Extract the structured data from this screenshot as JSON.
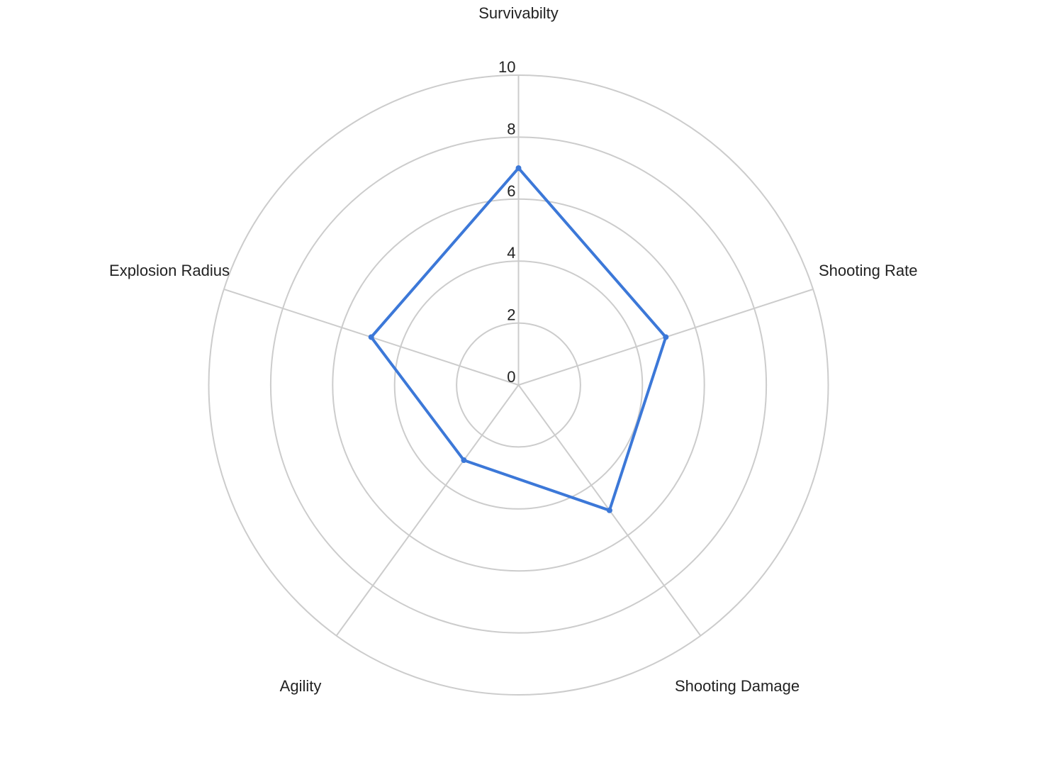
{
  "chart_data": {
    "type": "radar",
    "categories": [
      "Survivabilty",
      "Shooting Rate",
      "Shooting Damage",
      "Agility",
      "Explosion Radius"
    ],
    "series": [
      {
        "values": [
          7,
          5,
          5,
          3,
          5
        ],
        "color": "#3c78d8"
      }
    ],
    "r_range": [
      0,
      10
    ],
    "ticks": [
      "0",
      "2",
      "4",
      "6",
      "8",
      "10"
    ],
    "tick_values": [
      0,
      2,
      4,
      6,
      8,
      10
    ],
    "grid": true,
    "legend": "none"
  }
}
